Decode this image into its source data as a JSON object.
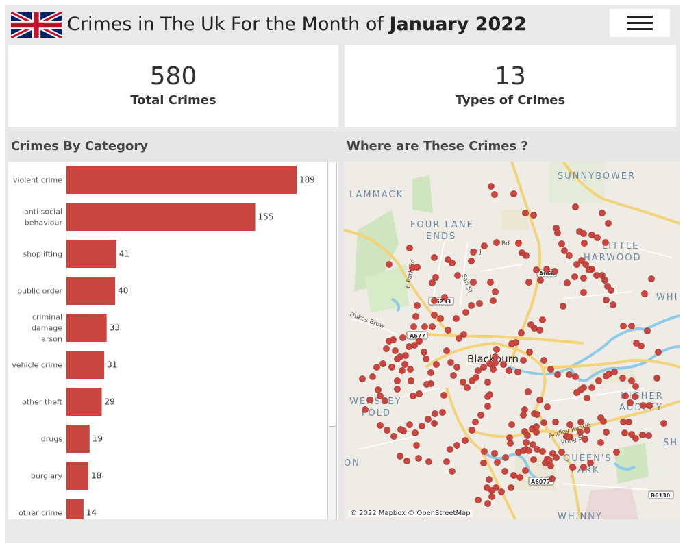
{
  "header": {
    "title_prefix": "Crimes in The Uk  For the Month of ",
    "title_month": "January 2022",
    "flag_icon": "uk-flag-icon",
    "menu_icon": "hamburger-menu-icon"
  },
  "kpis": [
    {
      "value": "580",
      "label": "Total Crimes"
    },
    {
      "value": "13",
      "label": "Types of Crimes"
    }
  ],
  "category_panel": {
    "title": "Crimes By Category"
  },
  "map_panel": {
    "title": "Where are These Crimes ?",
    "attribution": "© 2022 Mapbox © OpenStreetMap",
    "place_labels": [
      "LAMMACK",
      "SUNNYBOWER",
      "FOUR LANE",
      "ENDS",
      "LITTLE",
      "HARWOOD",
      "WHI",
      "Blackburn",
      "WENSLEY",
      "FOLD",
      "HIGHER",
      "AUDLEY",
      "SH",
      "QUEEN'S",
      "PARK",
      "WHINNY",
      "ON"
    ],
    "road_labels": [
      "St J",
      "Rd",
      "Earl St",
      "E Park Rd",
      "Dukes Brow",
      "Audley Range",
      "Pring St"
    ],
    "road_shields": [
      "A666",
      "B6233",
      "A677",
      "A6077",
      "B6130"
    ],
    "marker_color": "#c8463f"
  },
  "chart_data": {
    "type": "bar",
    "orientation": "horizontal",
    "categories": [
      "violent crime",
      "anti social behaviour",
      "shoplifting",
      "public order",
      "criminal damage arson",
      "vehicle crime",
      "other theft",
      "drugs",
      "burglary",
      "other crime"
    ],
    "values": [
      189,
      155,
      41,
      40,
      33,
      31,
      29,
      19,
      18,
      14
    ],
    "bar_color": "#c8463f",
    "xlim": [
      0,
      189
    ]
  }
}
